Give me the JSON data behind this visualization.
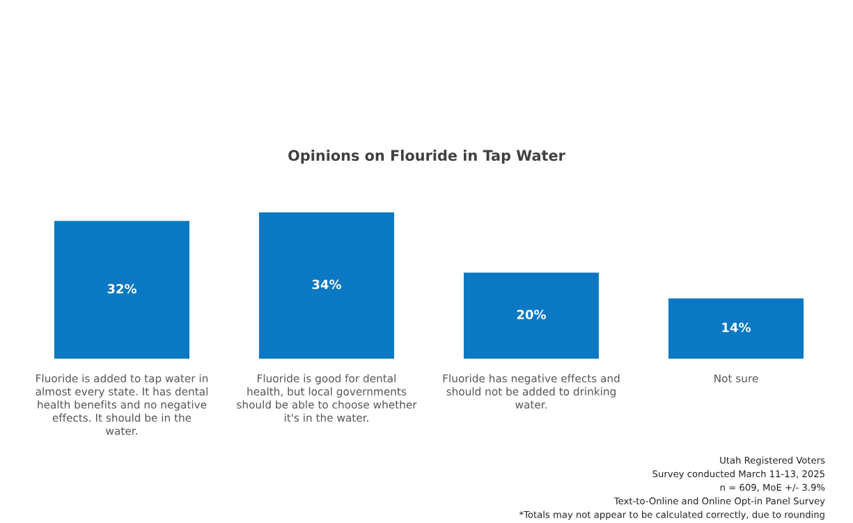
{
  "chart_data": {
    "type": "bar",
    "title": "Opinions on Flouride in Tap Water",
    "categories": [
      "Fluoride is added to tap water in almost every state. It has dental health benefits and no negative effects. It should be in the water.",
      "Fluoride is good for dental health, but local governments should be able to choose whether it's in the water.",
      "Fluoride has negative effects and should not be added to drinking water.",
      "Not sure"
    ],
    "values": [
      32,
      34,
      20,
      14
    ],
    "color": "#0a78c2",
    "data_labels": true,
    "value_labels": [
      "32%",
      "34%",
      "20%",
      "14%"
    ],
    "annotations": [
      "Utah Registered Voters",
      "Survey conducted March 11-13, 2025",
      "n = 609, MoE +/- 3.9%",
      "Text-to-Online and Online Opt-in Panel Survey",
      "*Totals may not appear to be calculated correctly, due to rounding"
    ]
  }
}
